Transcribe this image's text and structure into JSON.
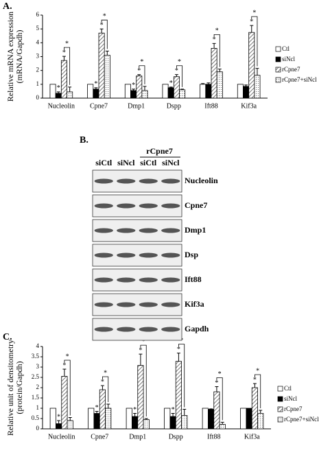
{
  "chart_data": [
    {
      "type": "bar",
      "panel": "A.",
      "ylabel": [
        "Relative mRNA expression",
        "(mRNA/Gapdh)"
      ],
      "categories": [
        "Nucleolin",
        "Cpne7",
        "Dmp1",
        "Dspp",
        "Ift88",
        "Kif3a"
      ],
      "series": [
        {
          "name": "Ctl",
          "color": "#ffffff",
          "pattern": "solid",
          "values": [
            1,
            1,
            1,
            1,
            1,
            1
          ],
          "errors": [
            0,
            0,
            0,
            0,
            0.05,
            0
          ],
          "markers": [
            null,
            null,
            null,
            null,
            null,
            null
          ]
        },
        {
          "name": "siNcl",
          "color": "#000000",
          "pattern": "solid",
          "values": [
            0.35,
            0.65,
            0.55,
            0.75,
            1.0,
            0.85
          ],
          "errors": [
            0.1,
            0.1,
            0.1,
            0.05,
            0.1,
            0.1
          ],
          "markers": [
            "*",
            "*",
            "*",
            "*",
            null,
            null
          ]
        },
        {
          "name": "rCpne7",
          "color": "#888888",
          "pattern": "hatch",
          "values": [
            2.72,
            4.7,
            1.6,
            1.55,
            3.6,
            4.75
          ],
          "errors": [
            0.3,
            0.3,
            0.1,
            0.15,
            0.35,
            0.5
          ],
          "markers": [
            "*",
            "*",
            "*",
            "*",
            "*",
            "*"
          ]
        },
        {
          "name": "rCpne7+siNcl",
          "color": "#888888",
          "pattern": "dots",
          "values": [
            0.45,
            3.1,
            0.55,
            0.6,
            1.9,
            1.65
          ],
          "errors": [
            0.35,
            0.3,
            0.3,
            0.05,
            0.2,
            0.5
          ],
          "markers": [
            null,
            null,
            null,
            null,
            null,
            null
          ]
        }
      ],
      "brackets": [
        "*",
        "*",
        "*",
        "*",
        "*",
        "*"
      ],
      "ylim": [
        0,
        6
      ],
      "yticks": [
        0,
        1,
        2,
        3,
        4,
        5,
        6
      ]
    },
    {
      "type": "bar",
      "panel": "C.",
      "ylabel": [
        "Relative unit of densitometry",
        "(protein/Gapdh)"
      ],
      "categories": [
        "Nucleolin",
        "Cpne7",
        "Dmp1",
        "Dspp",
        "Ift88",
        "Kif3a"
      ],
      "series": [
        {
          "name": "Ctl",
          "color": "#ffffff",
          "pattern": "solid",
          "values": [
            1,
            1,
            1,
            1,
            1,
            1
          ],
          "errors": [
            0,
            0,
            0,
            0,
            0,
            0
          ],
          "markers": [
            null,
            null,
            null,
            null,
            null,
            null
          ]
        },
        {
          "name": "siNcl",
          "color": "#000000",
          "pattern": "solid",
          "values": [
            0.25,
            0.75,
            0.6,
            0.6,
            0.95,
            1
          ],
          "errors": [
            0.15,
            0.1,
            0.15,
            0.15,
            0.02,
            0
          ],
          "markers": [
            "*",
            "*",
            "*",
            "*",
            null,
            null
          ]
        },
        {
          "name": "rCpne7",
          "color": "#888888",
          "pattern": "hatch",
          "values": [
            2.55,
            1.9,
            3.08,
            3.28,
            1.8,
            2.0
          ],
          "errors": [
            0.35,
            0.2,
            0.55,
            0.4,
            0.25,
            0.2
          ],
          "markers": [
            "*",
            "*",
            "*",
            "*",
            "*",
            "*"
          ]
        },
        {
          "name": "rCpne7+siNcl",
          "color": "#888888",
          "pattern": "dots",
          "values": [
            0.4,
            1.0,
            0.45,
            0.65,
            0.22,
            0.75
          ],
          "errors": [
            0.15,
            0.2,
            0.05,
            0.3,
            0.1,
            0.15
          ],
          "markers": [
            null,
            null,
            null,
            null,
            null,
            null
          ]
        }
      ],
      "brackets": [
        "*",
        "*",
        "*",
        "*",
        "*",
        "*"
      ],
      "ylim": [
        0,
        4
      ],
      "yticks": [
        0,
        0.5,
        1,
        1.5,
        2,
        2.5,
        3,
        3.5,
        4
      ]
    }
  ],
  "blot": {
    "panel": "B.",
    "group_label": "rCpne7",
    "lanes": [
      "siCtl",
      "siNcl",
      "siCtl",
      "siNcl"
    ],
    "rows": [
      "Nucleolin",
      "Cpne7",
      "Dmp1",
      "Dsp",
      "Ift88",
      "Kif3a",
      "Gapdh"
    ]
  }
}
